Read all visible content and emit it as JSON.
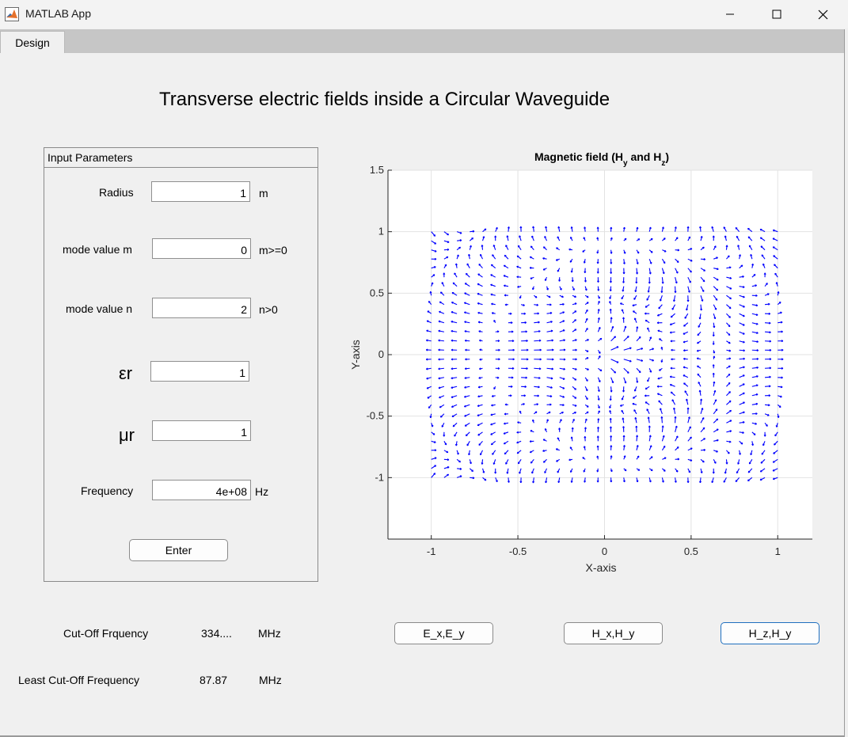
{
  "window": {
    "title": "MATLAB App"
  },
  "tabs": [
    {
      "label": "Design"
    }
  ],
  "main_title": "Transverse electric fields inside a Circular Waveguide",
  "input_panel": {
    "title": "Input Parameters",
    "radius": {
      "label": "Radius",
      "value": "1",
      "unit": "m"
    },
    "mode_m": {
      "label": "mode value m",
      "value": "0",
      "unit": "m>=0"
    },
    "mode_n": {
      "label": "mode value n",
      "value": "2",
      "unit": "n>0"
    },
    "epsilon_r": {
      "label": "εr",
      "value": "1"
    },
    "mu_r": {
      "label": "μr",
      "value": "1"
    },
    "frequency": {
      "label": "Frequency",
      "value": "4e+08",
      "unit": "Hz"
    },
    "enter_label": "Enter"
  },
  "results": {
    "cutoff": {
      "label": "Cut-Off Frquency",
      "value": "334....",
      "unit": "MHz"
    },
    "least_cutoff": {
      "label": "Least Cut-Off Frequency",
      "value": "87.87",
      "unit": "MHz"
    }
  },
  "field_buttons": [
    {
      "label": "E_x,E_y"
    },
    {
      "label": "H_x,H_y"
    },
    {
      "label": "H_z,H_y"
    }
  ],
  "colors": {
    "arrow": "#0000ff",
    "grid": "#e2e2e2",
    "focus": "#1f6fbf"
  },
  "chart_data": {
    "type": "quiver",
    "title": "Magnetic field (Hy and Hz)",
    "title_parts": {
      "main": "Magnetic  field  (H",
      "sub1": "y",
      "mid": "  and  H",
      "sub2": "z",
      "end": ")"
    },
    "xlabel": "X-axis",
    "ylabel": "Y-axis",
    "xlim": [
      -1.25,
      1.2
    ],
    "ylim": [
      -1.5,
      1.5
    ],
    "xticks": [
      -1,
      -0.5,
      0,
      0.5,
      1
    ],
    "xtick_labels": [
      "-1",
      "-0.5",
      "0",
      "0.5",
      "1"
    ],
    "yticks": [
      -1,
      -0.5,
      0,
      0.5,
      1,
      1.5
    ],
    "ytick_labels": [
      "-1",
      "-0.5",
      "0",
      "0.5",
      "1",
      "1.5"
    ],
    "grid": true,
    "field_domain": {
      "x": [
        -1,
        1
      ],
      "y": [
        -1,
        1
      ],
      "samples": 28
    },
    "mode": {
      "m": 0,
      "n": 2
    }
  }
}
